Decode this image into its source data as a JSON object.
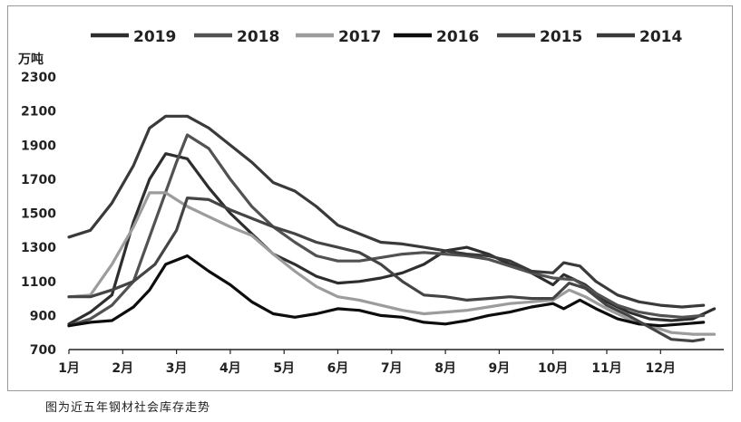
{
  "caption": "图为近五年钢材社会库存走势",
  "chart_data": {
    "type": "line",
    "title": "",
    "xlabel": "",
    "ylabel": "万吨",
    "ylim": [
      700,
      2300
    ],
    "yticks": [
      700,
      900,
      1100,
      1300,
      1500,
      1700,
      1900,
      2100,
      2300
    ],
    "categories": [
      "1月",
      "2月",
      "3月",
      "4月",
      "5月",
      "6月",
      "7月",
      "8月",
      "9月",
      "10月",
      "11月",
      "12月"
    ],
    "legend_position": "top",
    "grid": false,
    "series": [
      {
        "name": "2019",
        "color": "#2e2e2e",
        "points": [
          [
            1.0,
            850
          ],
          [
            1.4,
            920
          ],
          [
            1.8,
            1020
          ],
          [
            2.2,
            1450
          ],
          [
            2.5,
            1700
          ],
          [
            2.8,
            1850
          ],
          [
            3.2,
            1820
          ],
          [
            3.6,
            1650
          ],
          [
            4.0,
            1500
          ],
          [
            4.4,
            1380
          ],
          [
            4.8,
            1260
          ],
          [
            5.2,
            1200
          ],
          [
            5.6,
            1130
          ],
          [
            6.0,
            1090
          ],
          [
            6.4,
            1100
          ],
          [
            6.8,
            1120
          ],
          [
            7.2,
            1150
          ],
          [
            7.6,
            1200
          ],
          [
            8.0,
            1280
          ],
          [
            8.4,
            1300
          ],
          [
            8.8,
            1260
          ],
          [
            9.2,
            1200
          ],
          [
            9.6,
            1150
          ],
          [
            10.0,
            1080
          ],
          [
            10.2,
            1140
          ],
          [
            10.6,
            1080
          ],
          [
            11.0,
            980
          ],
          [
            11.4,
            920
          ],
          [
            11.8,
            880
          ],
          [
            12.2,
            870
          ],
          [
            12.6,
            880
          ],
          [
            13.0,
            940
          ]
        ]
      },
      {
        "name": "2018",
        "color": "#525252",
        "points": [
          [
            1.0,
            840
          ],
          [
            1.4,
            880
          ],
          [
            1.8,
            960
          ],
          [
            2.2,
            1100
          ],
          [
            2.6,
            1450
          ],
          [
            3.0,
            1800
          ],
          [
            3.2,
            1960
          ],
          [
            3.6,
            1880
          ],
          [
            4.0,
            1700
          ],
          [
            4.4,
            1540
          ],
          [
            4.8,
            1420
          ],
          [
            5.2,
            1330
          ],
          [
            5.6,
            1250
          ],
          [
            6.0,
            1220
          ],
          [
            6.4,
            1220
          ],
          [
            6.8,
            1240
          ],
          [
            7.2,
            1260
          ],
          [
            7.6,
            1270
          ],
          [
            8.0,
            1260
          ],
          [
            8.4,
            1250
          ],
          [
            8.8,
            1230
          ],
          [
            9.2,
            1190
          ],
          [
            9.6,
            1150
          ],
          [
            10.0,
            1120
          ],
          [
            10.4,
            1110
          ],
          [
            10.8,
            1030
          ],
          [
            11.2,
            960
          ],
          [
            11.6,
            920
          ],
          [
            12.0,
            900
          ],
          [
            12.4,
            890
          ],
          [
            12.8,
            900
          ]
        ]
      },
      {
        "name": "2017",
        "color": "#9c9c9c",
        "points": [
          [
            1.0,
            1010
          ],
          [
            1.4,
            1020
          ],
          [
            1.8,
            1200
          ],
          [
            2.2,
            1420
          ],
          [
            2.5,
            1620
          ],
          [
            2.8,
            1620
          ],
          [
            3.2,
            1540
          ],
          [
            3.6,
            1480
          ],
          [
            4.0,
            1420
          ],
          [
            4.4,
            1370
          ],
          [
            4.8,
            1260
          ],
          [
            5.2,
            1160
          ],
          [
            5.6,
            1070
          ],
          [
            6.0,
            1010
          ],
          [
            6.4,
            990
          ],
          [
            6.8,
            960
          ],
          [
            7.2,
            930
          ],
          [
            7.6,
            910
          ],
          [
            8.0,
            920
          ],
          [
            8.4,
            930
          ],
          [
            8.8,
            950
          ],
          [
            9.2,
            970
          ],
          [
            9.6,
            980
          ],
          [
            10.0,
            990
          ],
          [
            10.3,
            1050
          ],
          [
            10.6,
            1010
          ],
          [
            11.0,
            940
          ],
          [
            11.4,
            880
          ],
          [
            11.8,
            840
          ],
          [
            12.2,
            800
          ],
          [
            12.6,
            790
          ],
          [
            13.0,
            790
          ]
        ]
      },
      {
        "name": "2016",
        "color": "#0d0d0d",
        "points": [
          [
            1.0,
            840
          ],
          [
            1.4,
            860
          ],
          [
            1.8,
            870
          ],
          [
            2.2,
            950
          ],
          [
            2.5,
            1050
          ],
          [
            2.8,
            1200
          ],
          [
            3.2,
            1250
          ],
          [
            3.6,
            1160
          ],
          [
            4.0,
            1080
          ],
          [
            4.4,
            980
          ],
          [
            4.8,
            910
          ],
          [
            5.2,
            890
          ],
          [
            5.6,
            910
          ],
          [
            6.0,
            940
          ],
          [
            6.4,
            930
          ],
          [
            6.8,
            900
          ],
          [
            7.2,
            890
          ],
          [
            7.6,
            860
          ],
          [
            8.0,
            850
          ],
          [
            8.4,
            870
          ],
          [
            8.8,
            900
          ],
          [
            9.2,
            920
          ],
          [
            9.6,
            950
          ],
          [
            10.0,
            970
          ],
          [
            10.2,
            940
          ],
          [
            10.5,
            990
          ],
          [
            10.8,
            940
          ],
          [
            11.2,
            880
          ],
          [
            11.6,
            850
          ],
          [
            12.0,
            840
          ],
          [
            12.4,
            850
          ],
          [
            12.8,
            860
          ]
        ]
      },
      {
        "name": "2015",
        "color": "#444444",
        "points": [
          [
            1.0,
            1010
          ],
          [
            1.4,
            1010
          ],
          [
            1.8,
            1050
          ],
          [
            2.2,
            1100
          ],
          [
            2.6,
            1200
          ],
          [
            3.0,
            1400
          ],
          [
            3.2,
            1590
          ],
          [
            3.6,
            1580
          ],
          [
            4.0,
            1520
          ],
          [
            4.4,
            1470
          ],
          [
            4.8,
            1420
          ],
          [
            5.2,
            1380
          ],
          [
            5.6,
            1330
          ],
          [
            6.0,
            1300
          ],
          [
            6.4,
            1270
          ],
          [
            6.8,
            1200
          ],
          [
            7.2,
            1100
          ],
          [
            7.6,
            1020
          ],
          [
            8.0,
            1010
          ],
          [
            8.4,
            990
          ],
          [
            8.8,
            1000
          ],
          [
            9.2,
            1010
          ],
          [
            9.6,
            1000
          ],
          [
            10.0,
            1000
          ],
          [
            10.3,
            1090
          ],
          [
            10.6,
            1060
          ],
          [
            11.0,
            960
          ],
          [
            11.4,
            900
          ],
          [
            11.8,
            830
          ],
          [
            12.2,
            760
          ],
          [
            12.6,
            750
          ],
          [
            12.8,
            760
          ]
        ]
      },
      {
        "name": "2014",
        "color": "#3a3a3a",
        "points": [
          [
            1.0,
            1360
          ],
          [
            1.4,
            1400
          ],
          [
            1.8,
            1560
          ],
          [
            2.2,
            1780
          ],
          [
            2.5,
            2000
          ],
          [
            2.8,
            2070
          ],
          [
            3.2,
            2070
          ],
          [
            3.6,
            2000
          ],
          [
            4.0,
            1900
          ],
          [
            4.4,
            1800
          ],
          [
            4.8,
            1680
          ],
          [
            5.2,
            1630
          ],
          [
            5.6,
            1540
          ],
          [
            6.0,
            1430
          ],
          [
            6.4,
            1380
          ],
          [
            6.8,
            1330
          ],
          [
            7.2,
            1320
          ],
          [
            7.6,
            1300
          ],
          [
            8.0,
            1280
          ],
          [
            8.4,
            1260
          ],
          [
            8.8,
            1250
          ],
          [
            9.2,
            1220
          ],
          [
            9.6,
            1160
          ],
          [
            10.0,
            1150
          ],
          [
            10.2,
            1210
          ],
          [
            10.5,
            1190
          ],
          [
            10.8,
            1100
          ],
          [
            11.2,
            1020
          ],
          [
            11.6,
            980
          ],
          [
            12.0,
            960
          ],
          [
            12.4,
            950
          ],
          [
            12.8,
            960
          ]
        ]
      }
    ]
  }
}
